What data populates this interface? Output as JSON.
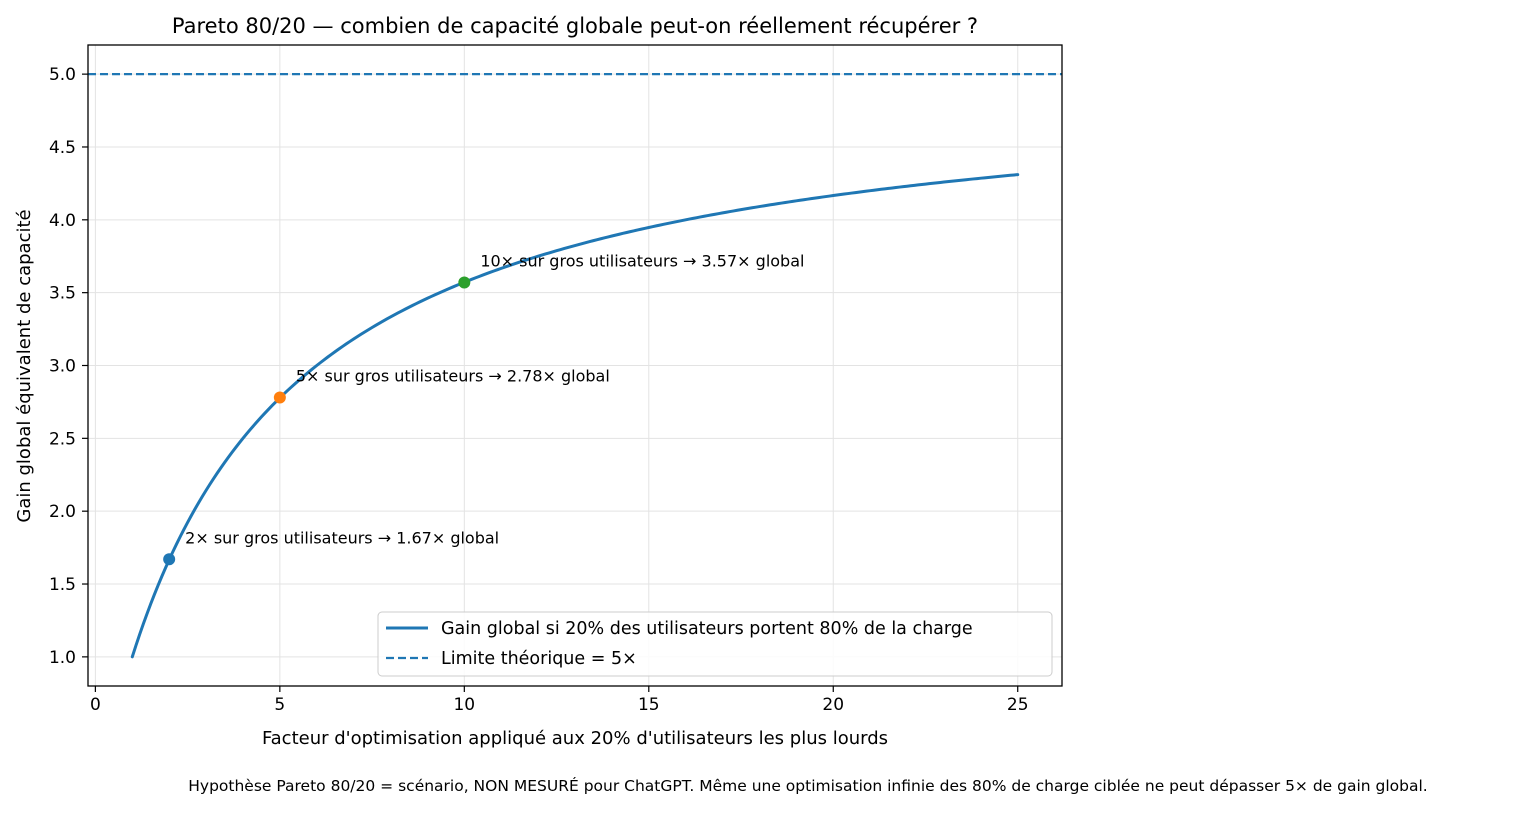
{
  "chart_data": {
    "type": "line",
    "title": "Pareto 80/20 — combien de capacité globale peut-on réellement récupérer ?",
    "xlabel": "Facteur d'optimisation appliqué aux 20% d'utilisateurs les plus lourds",
    "ylabel": "Gain global équivalent de capacité",
    "xlim": [
      -0.2,
      26.2
    ],
    "ylim": [
      0.8,
      5.2
    ],
    "x_ticks": [
      0,
      5,
      10,
      15,
      20,
      25
    ],
    "x_tick_labels": [
      "0",
      "5",
      "10",
      "15",
      "20",
      "25"
    ],
    "y_ticks": [
      1.0,
      1.5,
      2.0,
      2.5,
      3.0,
      3.5,
      4.0,
      4.5,
      5.0
    ],
    "y_tick_labels": [
      "1.0",
      "1.5",
      "2.0",
      "2.5",
      "3.0",
      "3.5",
      "4.0",
      "4.5",
      "5.0"
    ],
    "grid": true,
    "legend_position": "lower-right",
    "series": [
      {
        "name": "Gain global si 20% des utilisateurs portent 80% de la charge",
        "style": "solid",
        "color": "#1f77b4",
        "x": [
          1,
          1.25,
          1.5,
          1.75,
          2,
          2.5,
          3,
          3.5,
          4,
          4.5,
          5,
          5.5,
          6,
          6.5,
          7,
          7.5,
          8,
          8.5,
          9,
          9.5,
          10,
          11,
          12,
          13,
          14,
          15,
          16,
          17,
          18,
          19,
          20,
          21,
          22,
          23,
          24,
          25
        ],
        "y": [
          1.0,
          1.25,
          1.43,
          1.56,
          1.67,
          1.82,
          1.92,
          2.0,
          2.5,
          2.65,
          2.78,
          2.89,
          3.0,
          3.1,
          3.18,
          3.26,
          3.33,
          3.4,
          3.46,
          3.52,
          3.57,
          3.67,
          3.75,
          3.82,
          3.89,
          3.95,
          4.0,
          4.05,
          4.09,
          4.13,
          4.17,
          4.2,
          4.23,
          4.26,
          4.29,
          4.31
        ]
      },
      {
        "name": "Limite théorique = 5×",
        "style": "dashed",
        "color": "#1f77b4",
        "y_constant": 5.0
      }
    ],
    "highlight_points": [
      {
        "x": 2,
        "y": 1.67,
        "color": "#1f77b4",
        "label": "2× sur gros utilisateurs → 1.67× global"
      },
      {
        "x": 5,
        "y": 2.78,
        "color": "#ff7f0e",
        "label": "5× sur gros utilisateurs → 2.78× global"
      },
      {
        "x": 10,
        "y": 3.57,
        "color": "#2ca02c",
        "label": "10× sur gros utilisateurs → 3.57× global"
      }
    ]
  },
  "footnote": "Hypothèse Pareto 80/20 = scénario, NON MESURÉ pour ChatGPT. Même une optimisation infinie des 80% de charge ciblée ne peut dépasser 5× de gain global."
}
